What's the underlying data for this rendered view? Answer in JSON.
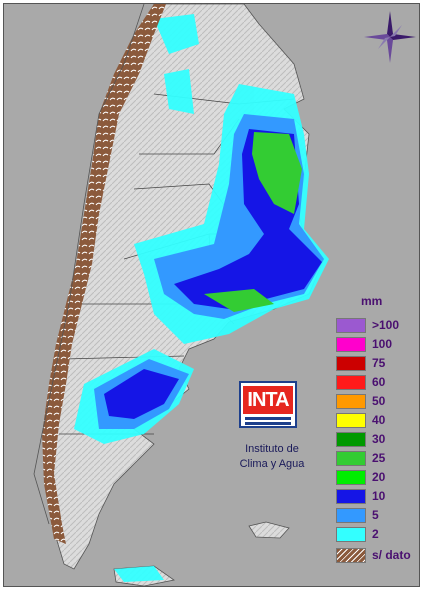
{
  "map": {
    "unit": "mm",
    "legend": [
      {
        "label": ">100",
        "color": "#9b59d0"
      },
      {
        "label": "100",
        "color": "#ff00cc"
      },
      {
        "label": "75",
        "color": "#cc0000"
      },
      {
        "label": "60",
        "color": "#ff1a1a"
      },
      {
        "label": "50",
        "color": "#ff9900"
      },
      {
        "label": "40",
        "color": "#ffff00"
      },
      {
        "label": "30",
        "color": "#009900"
      },
      {
        "label": "25",
        "color": "#33cc33"
      },
      {
        "label": "20",
        "color": "#00ee00"
      },
      {
        "label": "10",
        "color": "#1515e6"
      },
      {
        "label": "5",
        "color": "#3399ff"
      },
      {
        "label": "2",
        "color": "#33ffff"
      },
      {
        "label": "s/ dato",
        "color": "#8b5a3c"
      }
    ],
    "logo_text": "INTA",
    "caption_line1": "Instituto de",
    "caption_line2": "Clima y Agua",
    "compass_icon": "compass-rose-icon"
  }
}
